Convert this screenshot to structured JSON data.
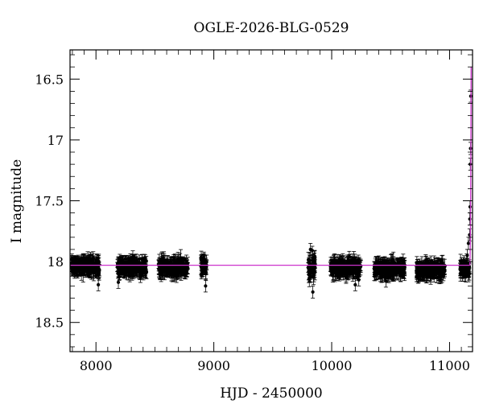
{
  "chart_data": {
    "type": "scatter",
    "title": "OGLE-2026-BLG-0529",
    "xlabel": "HJD - 2450000",
    "ylabel": "I magnitude",
    "xlim": [
      7780,
      11195
    ],
    "ylim": [
      18.74,
      16.26
    ],
    "y_inverted": true,
    "x_ticks": [
      8000,
      9000,
      10000,
      11000
    ],
    "y_ticks": [
      16.5,
      17,
      17.5,
      18,
      18.5
    ],
    "y_tick_labels": [
      "16.5",
      "17",
      "17.5",
      "18",
      "18.5"
    ],
    "grid": false,
    "colors": {
      "points": "#000000",
      "model": "#cc33cc"
    },
    "observing_seasons": [
      {
        "start": 7790,
        "end": 8030,
        "mean_mag": 18.04,
        "scatter": 0.05
      },
      {
        "start": 8180,
        "end": 8430,
        "mean_mag": 18.04,
        "scatter": 0.05
      },
      {
        "start": 8530,
        "end": 8780,
        "mean_mag": 18.05,
        "scatter": 0.05
      },
      {
        "start": 8890,
        "end": 8940,
        "mean_mag": 18.04,
        "scatter": 0.06
      },
      {
        "start": 9800,
        "end": 9860,
        "mean_mag": 18.05,
        "scatter": 0.08
      },
      {
        "start": 9990,
        "end": 10250,
        "mean_mag": 18.05,
        "scatter": 0.05
      },
      {
        "start": 10360,
        "end": 10620,
        "mean_mag": 18.06,
        "scatter": 0.05
      },
      {
        "start": 10720,
        "end": 10960,
        "mean_mag": 18.07,
        "scatter": 0.05
      },
      {
        "start": 11090,
        "end": 11170,
        "mean_mag": 18.06,
        "scatter": 0.05
      }
    ],
    "outliers": [
      {
        "x": 8190,
        "y": 18.17
      },
      {
        "x": 8020,
        "y": 18.19
      },
      {
        "x": 8930,
        "y": 18.2
      },
      {
        "x": 9840,
        "y": 18.25
      },
      {
        "x": 10200,
        "y": 18.19
      },
      {
        "x": 10230,
        "y": 18.15
      },
      {
        "x": 10460,
        "y": 18.16
      },
      {
        "x": 9820,
        "y": 17.9
      }
    ],
    "rise_points": [
      {
        "x": 11150,
        "y": 17.95
      },
      {
        "x": 11160,
        "y": 17.85
      },
      {
        "x": 11170,
        "y": 17.78
      },
      {
        "x": 11172,
        "y": 17.65
      },
      {
        "x": 11174,
        "y": 17.55
      },
      {
        "x": 11176,
        "y": 17.2
      },
      {
        "x": 11178,
        "y": 17.07
      },
      {
        "x": 11180,
        "y": 16.64
      }
    ],
    "model": {
      "baseline": 18.03,
      "x_start": 7780,
      "x_rise": 11170,
      "peak": {
        "x": 11183,
        "y": 16.4
      }
    }
  }
}
